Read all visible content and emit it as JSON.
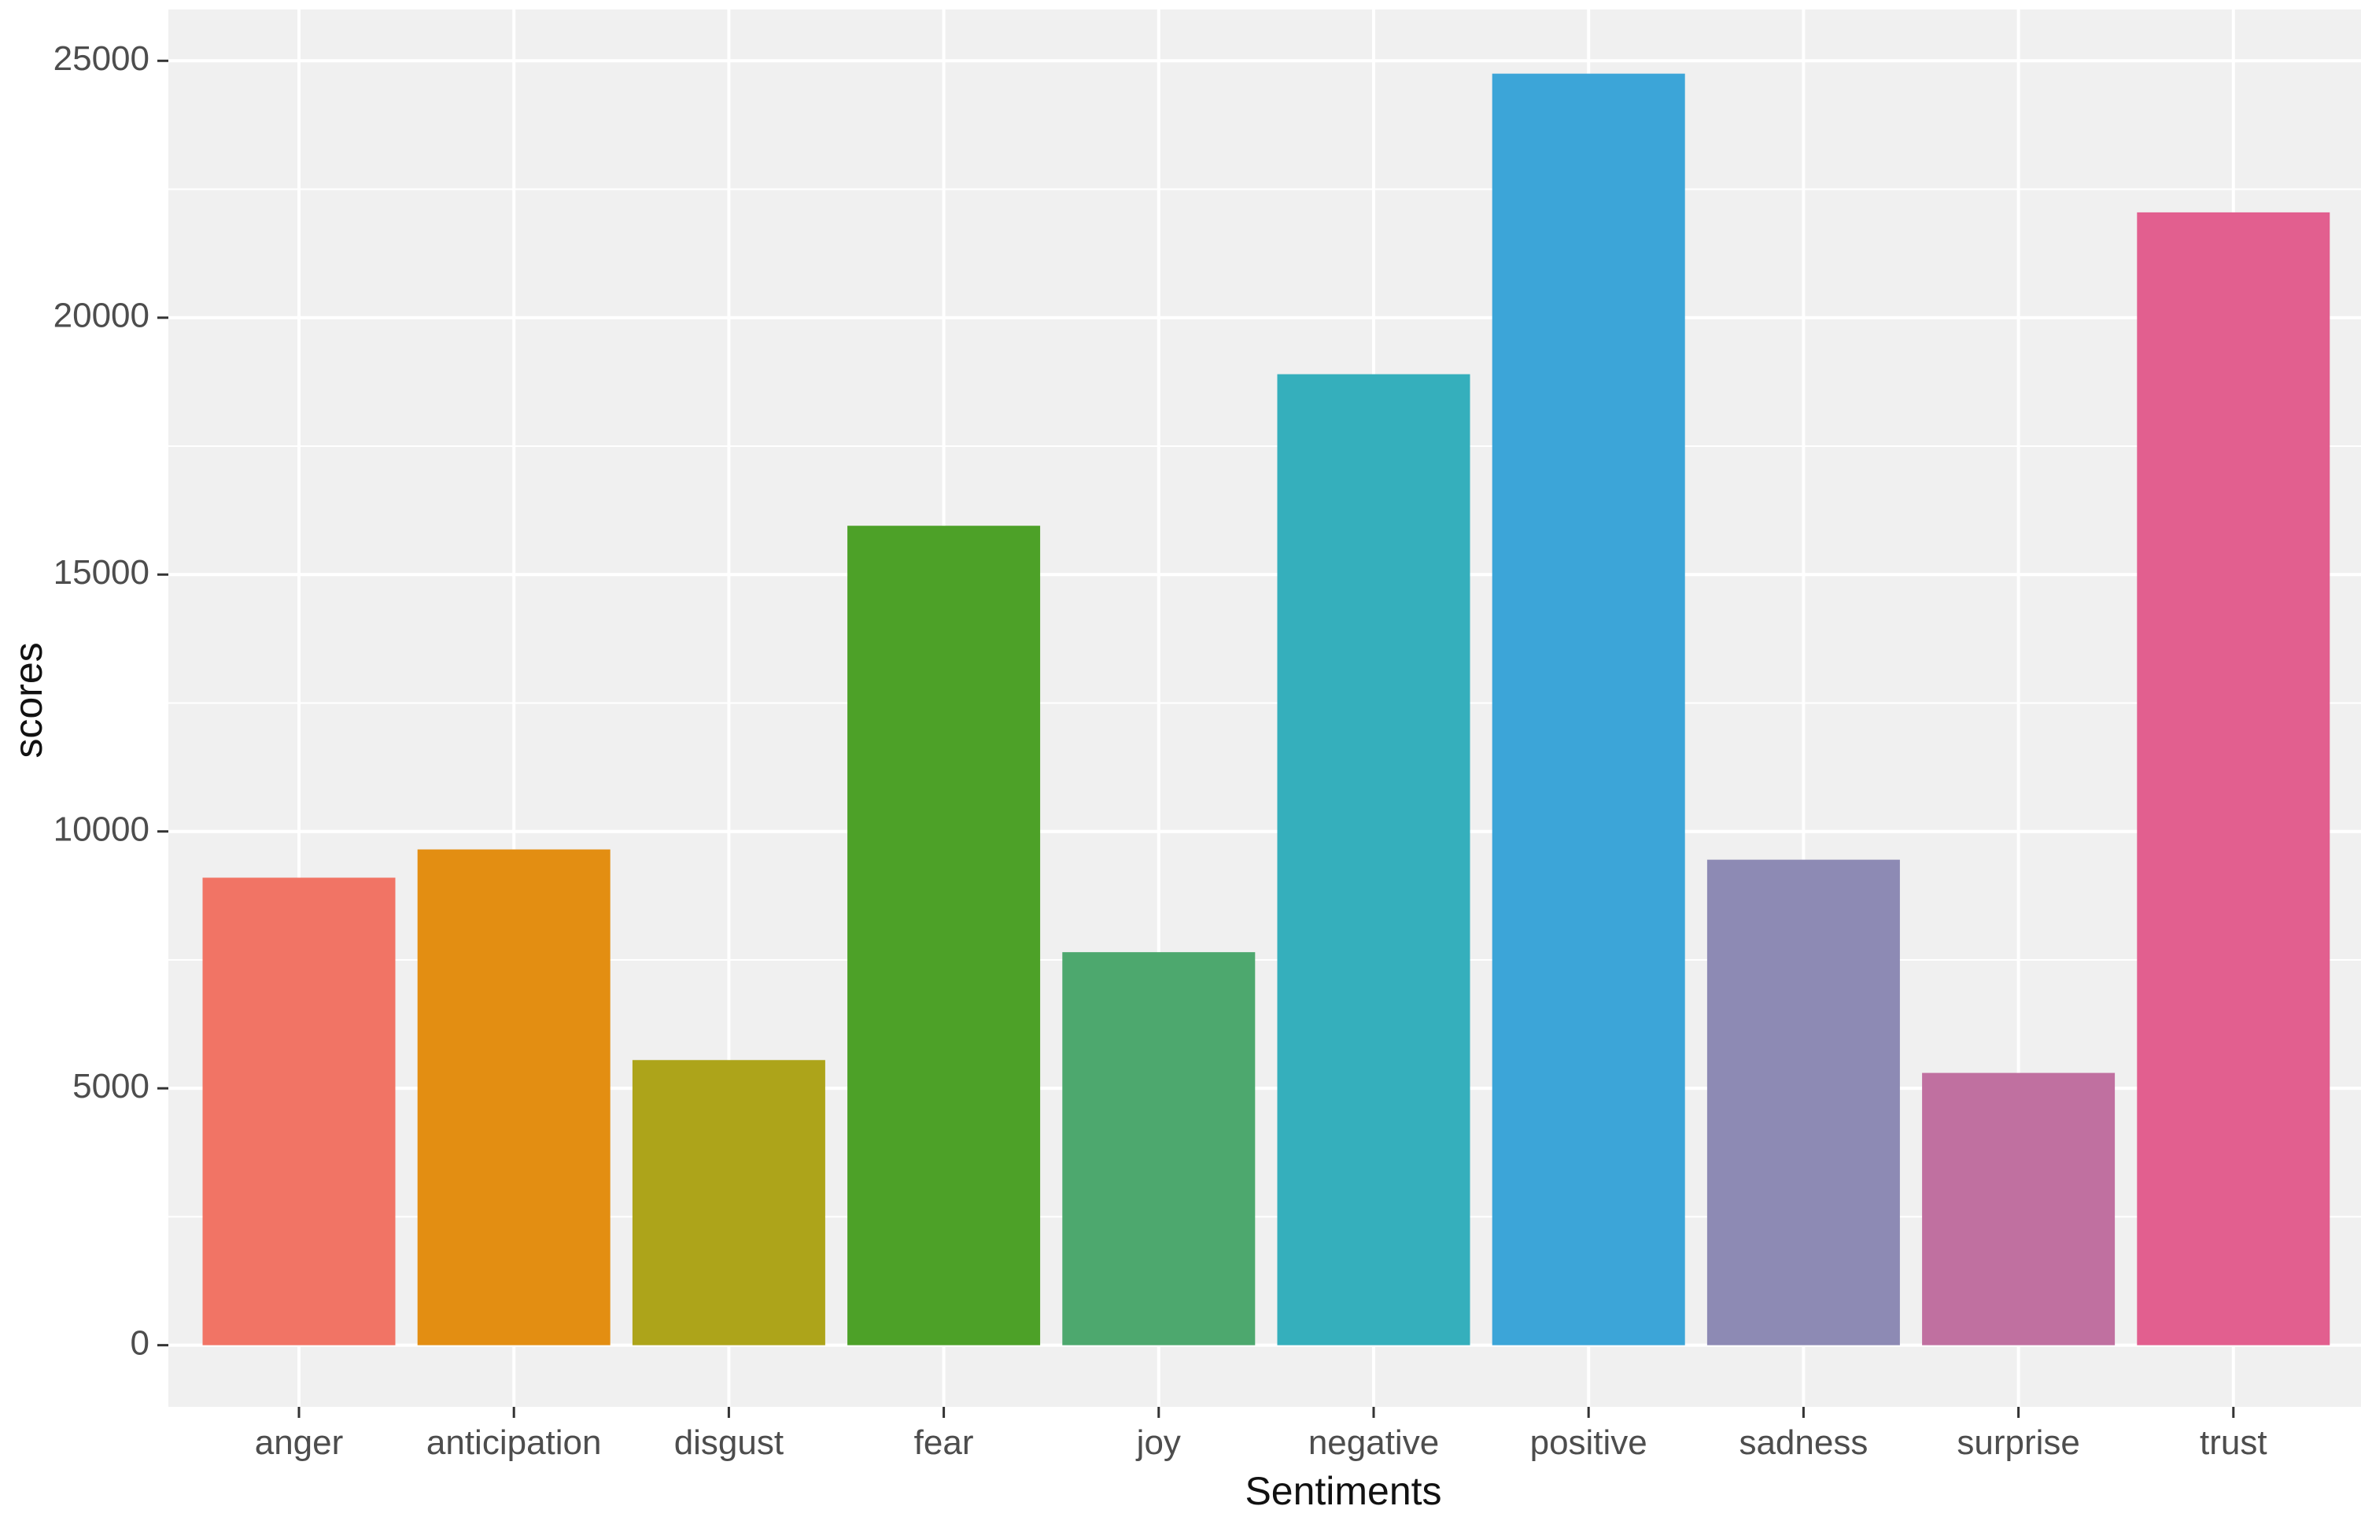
{
  "chart_data": {
    "type": "bar",
    "title": "",
    "xlabel": "Sentiments",
    "ylabel": "scores",
    "categories": [
      "anger",
      "anticipation",
      "disgust",
      "fear",
      "joy",
      "negative",
      "positive",
      "sadness",
      "surprise",
      "trust"
    ],
    "values": [
      9100,
      9650,
      5550,
      15950,
      7650,
      18900,
      24750,
      9450,
      5300,
      22050
    ],
    "colors": [
      "#F17465",
      "#E38E12",
      "#ADA41A",
      "#4DA128",
      "#4DA86E",
      "#35AFBC",
      "#3CA5D8",
      "#8D8AB4",
      "#C070A0",
      "#E25F8F"
    ],
    "yticks": [
      0,
      5000,
      10000,
      15000,
      20000,
      25000
    ],
    "ylim": [
      -1200,
      26000
    ],
    "grid": true,
    "legend": "none",
    "background": "#F0F0F0",
    "grid_color": "#FFFFFF"
  }
}
